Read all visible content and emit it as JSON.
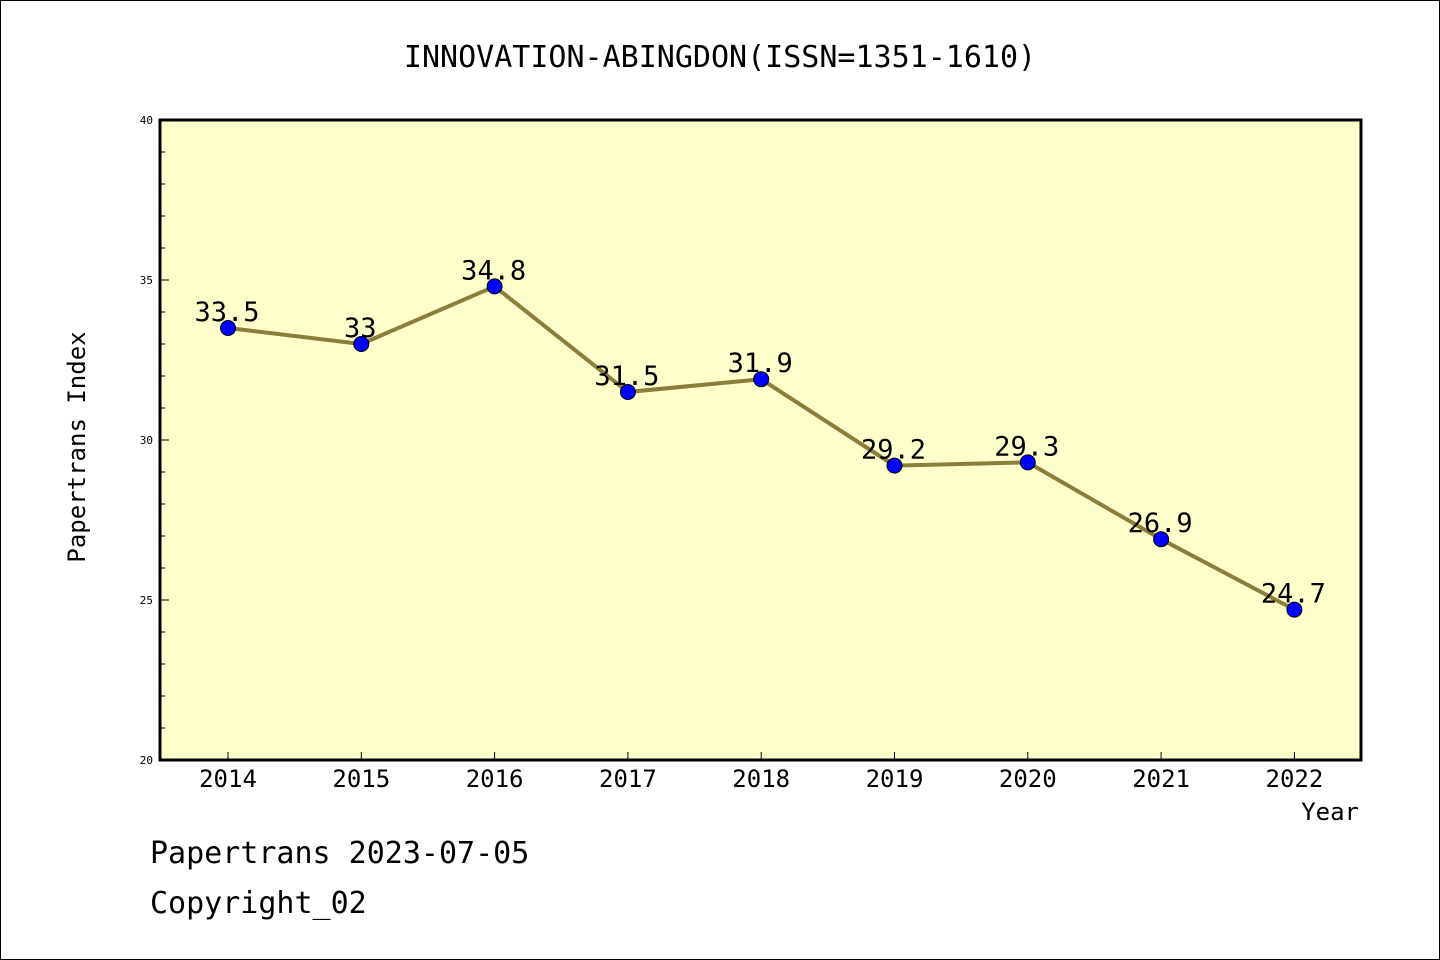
{
  "chart_data": {
    "type": "line",
    "title": "INNOVATION-ABINGDON(ISSN=1351-1610)",
    "xlabel": "Year",
    "ylabel": "Papertrans Index",
    "categories": [
      "2014",
      "2015",
      "2016",
      "2017",
      "2018",
      "2019",
      "2020",
      "2021",
      "2022"
    ],
    "series": [
      {
        "values": [
          33.5,
          33,
          34.8,
          31.5,
          31.9,
          29.2,
          29.3,
          26.9,
          24.7
        ],
        "data_labels": [
          "33.5",
          "33",
          "34.8",
          "31.5",
          "31.9",
          "29.2",
          "29.3",
          "26.9",
          "24.7"
        ]
      }
    ],
    "ylim": [
      20,
      40
    ],
    "yticks": [
      "20",
      "25",
      "30",
      "35",
      "40"
    ],
    "grid": false,
    "colors": {
      "plot_background": "#ffffcc",
      "line": "#8b7d3a",
      "marker": "#0000ff"
    }
  },
  "footer": {
    "date_text": "Papertrans 2023-07-05",
    "copyright_text": "Copyright_02"
  }
}
